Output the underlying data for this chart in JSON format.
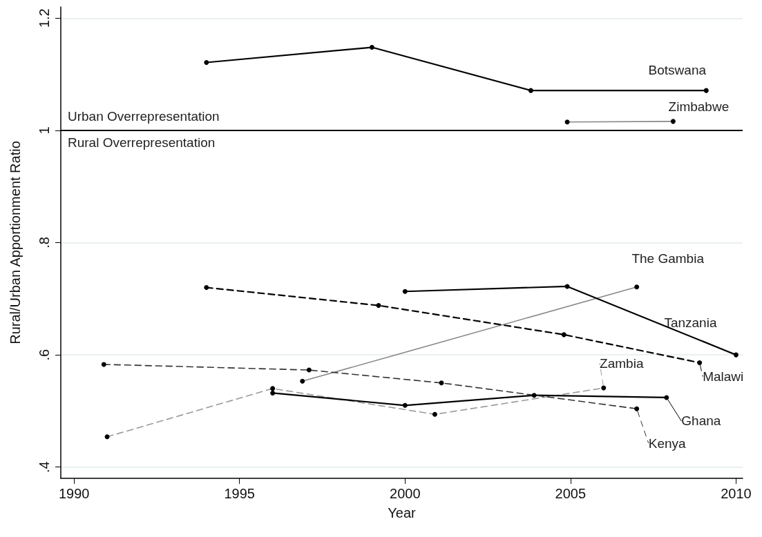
{
  "chart_data": {
    "type": "line",
    "xlabel": "Year",
    "ylabel": "Rural/Urban Apportionment Ratio",
    "xlim": [
      1989.6,
      2010.2
    ],
    "xticks": [
      1990,
      1995,
      2000,
      2005,
      2010
    ],
    "ylim": [
      0.38,
      1.22
    ],
    "yticks": [
      {
        "value": 0.4,
        "label": ".4"
      },
      {
        "value": 0.6,
        "label": ".6"
      },
      {
        "value": 0.8,
        "label": ".8"
      },
      {
        "value": 1,
        "label": "1"
      },
      {
        "value": 1.2,
        "label": "1.2"
      }
    ],
    "grid": "y",
    "marker": "circle",
    "ref_lines": [
      {
        "axis": "y",
        "value": 1,
        "color": "#000000"
      }
    ],
    "annotations": [
      "Urban Overrepresentation",
      "Rural Overrepresentation"
    ],
    "series": [
      {
        "name": "Botswana",
        "color": "#000000",
        "line_style": "solid",
        "x": [
          1994,
          1999,
          2003.8,
          2009.1
        ],
        "values": [
          1.121,
          1.148,
          1.071,
          1.071
        ]
      },
      {
        "name": "Zimbabwe",
        "color": "#888888",
        "line_style": "solid",
        "x": [
          2004.9,
          2008.1
        ],
        "values": [
          1.015,
          1.016
        ]
      },
      {
        "name": "The Gambia",
        "color": "#888888",
        "line_style": "solid",
        "x": [
          1996.9,
          2007
        ],
        "values": [
          0.553,
          0.721
        ]
      },
      {
        "name": "Tanzania",
        "color": "#000000",
        "line_style": "solid",
        "x": [
          2000,
          2004.9,
          2010
        ],
        "values": [
          0.713,
          0.722,
          0.6
        ]
      },
      {
        "name": "Malawi",
        "color": "#000000",
        "line_style": "dashed",
        "x": [
          1994,
          1999.2,
          2004.8,
          2008.9
        ],
        "values": [
          0.72,
          0.688,
          0.636,
          0.586
        ]
      },
      {
        "name": "Zambia",
        "color": "#999999",
        "line_style": "dashed",
        "x": [
          1991,
          1996,
          2000.9,
          2006
        ],
        "values": [
          0.454,
          0.54,
          0.494,
          0.541
        ]
      },
      {
        "name": "Ghana",
        "color": "#000000",
        "line_style": "solid",
        "x": [
          1996,
          2000,
          2003.9,
          2007.9
        ],
        "values": [
          0.532,
          0.51,
          0.528,
          0.524
        ]
      },
      {
        "name": "Kenya",
        "color": "#333333",
        "line_style": "dashed",
        "x": [
          1990.9,
          1997.1,
          2001.1,
          2007
        ],
        "values": [
          0.583,
          0.573,
          0.55,
          0.504
        ]
      }
    ]
  }
}
